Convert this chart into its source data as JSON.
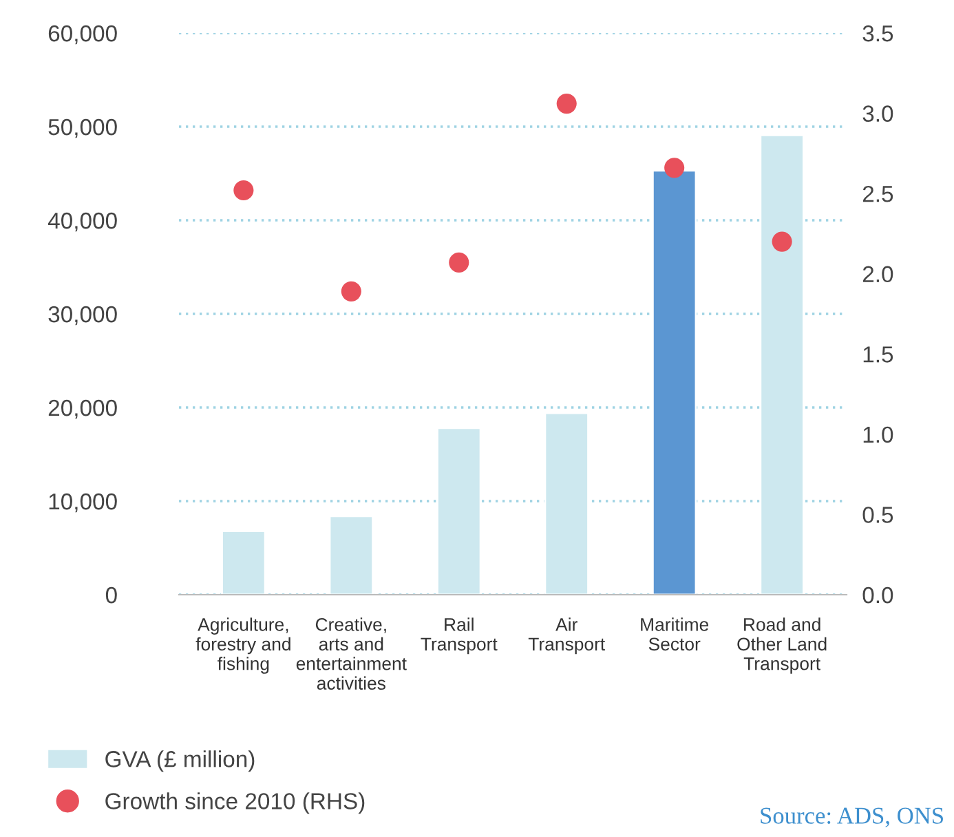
{
  "chart_data": {
    "type": "bar",
    "categories": [
      "Agriculture,\nforestry and\nfishing",
      "Creative,\narts and\nentertainment\nactivities",
      "Rail\nTransport",
      "Air\nTransport",
      "Maritime\nSector",
      "Road and\nOther Land\nTransport"
    ],
    "series": [
      {
        "name": "GVA (£ million)",
        "color": "#cde8ef",
        "colors": [
          "#cde8ef",
          "#cde8ef",
          "#cde8ef",
          "#cde8ef",
          "#5b96d2",
          "#cde8ef"
        ],
        "values": [
          6800,
          8400,
          17800,
          19400,
          45300,
          49100
        ]
      },
      {
        "name": "Growth since 2010 (RHS)",
        "type": "scatter",
        "axis": "y2",
        "color": "#e8505b",
        "values": [
          2.52,
          1.89,
          2.07,
          3.06,
          2.66,
          2.2
        ]
      }
    ],
    "ylim": [
      0,
      60000
    ],
    "yticks": [
      0,
      {
        "value": 10000,
        "label": "10,000"
      },
      {
        "value": 20000,
        "label": "20,000"
      },
      {
        "value": 30000,
        "label": "30,000"
      },
      {
        "value": 40000,
        "label": "40,000"
      },
      {
        "value": 50000,
        "label": "50,000"
      },
      {
        "value": 60000,
        "label": "60,000"
      }
    ],
    "y2lim": [
      0,
      3.5
    ],
    "y2ticks": [
      {
        "value": 0,
        "label": "0.0"
      },
      {
        "value": 0.5,
        "label": "0.5"
      },
      {
        "value": 1,
        "label": "1.0"
      },
      {
        "value": 1.5,
        "label": "1.5"
      },
      {
        "value": 2,
        "label": "2.0"
      },
      {
        "value": 2.5,
        "label": "2.5"
      },
      {
        "value": 3,
        "label": "3.0"
      },
      {
        "value": 3.5,
        "label": "3.5"
      }
    ],
    "grid": "y",
    "legend": "bottom left",
    "marker": "circle",
    "annotations": [
      "Source: ADS, ONS"
    ]
  }
}
